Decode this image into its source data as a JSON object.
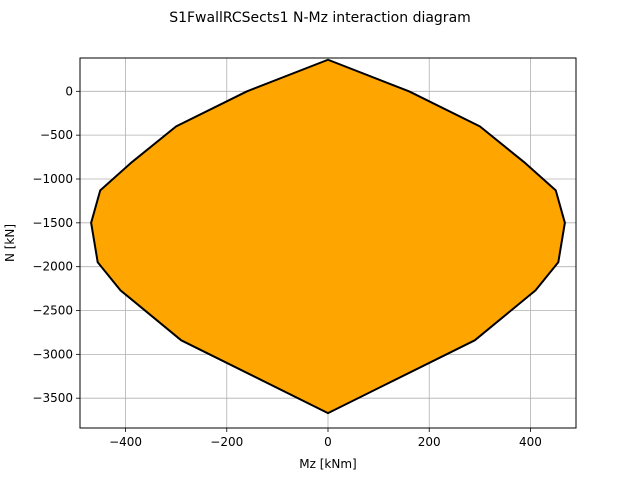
{
  "chart_data": {
    "type": "area",
    "title": "S1FwallRCSects1 N-Mz interaction diagram",
    "xlabel": "Mz [kNm]",
    "ylabel": "N [kN]",
    "xlim": [
      -490,
      490
    ],
    "ylim": [
      -3840,
      380
    ],
    "xticks": [
      -400,
      -200,
      0,
      200,
      400
    ],
    "yticks": [
      0,
      -500,
      -1000,
      -1500,
      -2000,
      -2500,
      -3000,
      -3500
    ],
    "xtick_labels": [
      "−400",
      "−200",
      "0",
      "200",
      "400"
    ],
    "ytick_labels": [
      "0",
      "−500",
      "−1000",
      "−1500",
      "−2000",
      "−2500",
      "−3000",
      "−3500"
    ],
    "grid": true,
    "fill_color": "#ffa500",
    "line_color": "#000000",
    "series": [
      {
        "values": [
          [
            0,
            360
          ],
          [
            -160,
            0
          ],
          [
            -300,
            -400
          ],
          [
            -390,
            -820
          ],
          [
            -450,
            -1130
          ],
          [
            -468,
            -1500
          ],
          [
            -455,
            -1950
          ],
          [
            -410,
            -2270
          ],
          [
            -290,
            -2840
          ],
          [
            0,
            -3670
          ],
          [
            290,
            -2840
          ],
          [
            410,
            -2270
          ],
          [
            455,
            -1950
          ],
          [
            468,
            -1500
          ],
          [
            450,
            -1130
          ],
          [
            390,
            -820
          ],
          [
            300,
            -400
          ],
          [
            160,
            0
          ],
          [
            0,
            360
          ]
        ]
      }
    ]
  }
}
